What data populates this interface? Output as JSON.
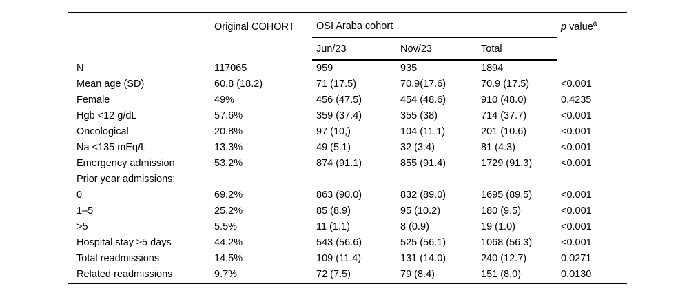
{
  "table": {
    "header": {
      "original_cohort": "Original COHORT",
      "osi_araba_cohort": "OSI Araba cohort",
      "p_value_italic": "p",
      "p_value_rest": " value",
      "p_value_superscript": "a",
      "subheaders": {
        "jun": "Jun/23",
        "nov": "Nov/23",
        "total": "Total"
      }
    },
    "rows": [
      {
        "label": "N",
        "original": "117065",
        "jun": "959",
        "nov": "935",
        "total": "1894",
        "p": ""
      },
      {
        "label": "Mean age (SD)",
        "original": "60.8 (18.2)",
        "jun": "71 (17.5)",
        "nov": "70.9(17.6)",
        "total": "70.9 (17.5)",
        "p": "<0.001"
      },
      {
        "label": "Female",
        "original": "49%",
        "jun": "456 (47.5)",
        "nov": "454 (48.6)",
        "total": "910 (48.0)",
        "p": "0.4235"
      },
      {
        "label": "Hgb <12 g/dL",
        "original": "57.6%",
        "jun": "359 (37.4)",
        "nov": "355 (38)",
        "total": "714 (37.7)",
        "p": "<0.001"
      },
      {
        "label": "Oncological",
        "original": "20.8%",
        "jun": "97 (10,)",
        "nov": "104 (11.1)",
        "total": "201 (10.6)",
        "p": "<0.001"
      },
      {
        "label": "Na <135 mEq/L",
        "original": "13.3%",
        "jun": "49 (5.1)",
        "nov": "32 (3.4)",
        "total": "81 (4.3)",
        "p": "<0.001"
      },
      {
        "label": "Emergency admission",
        "original": "53.2%",
        "jun": "874 (91.1)",
        "nov": "855 (91.4)",
        "total": "1729 (91.3)",
        "p": "<0.001"
      },
      {
        "label": "Prior year admissions:",
        "original": "",
        "jun": "",
        "nov": "",
        "total": "",
        "p": ""
      },
      {
        "label": "0",
        "original": "69.2%",
        "jun": "863 (90.0)",
        "nov": "832 (89.0)",
        "total": "1695 (89.5)",
        "p": "<0.001"
      },
      {
        "label": "1–5",
        "original": "25.2%",
        "jun": "85 (8.9)",
        "nov": "95 (10.2)",
        "total": "180 (9.5)",
        "p": "<0.001"
      },
      {
        "label": ">5",
        "original": "5.5%",
        "jun": "11 (1.1)",
        "nov": "8 (0.9)",
        "total": "19 (1.0)",
        "p": "<0.001"
      },
      {
        "label": "Hospital stay ≥5 days",
        "original": "44.2%",
        "jun": "543 (56.6)",
        "nov": "525 (56.1)",
        "total": "1068 (56.3)",
        "p": "<0.001"
      },
      {
        "label": "Total readmissions",
        "original": "14.5%",
        "jun": "109 (11.4)",
        "nov": "131 (14.0)",
        "total": "240 (12.7)",
        "p": "0.0271"
      },
      {
        "label": "Related readmissions",
        "original": "9.7%",
        "jun": "72 (7.5)",
        "nov": "79 (8.4)",
        "total": "151 (8.0)",
        "p": "0.0130"
      }
    ]
  }
}
